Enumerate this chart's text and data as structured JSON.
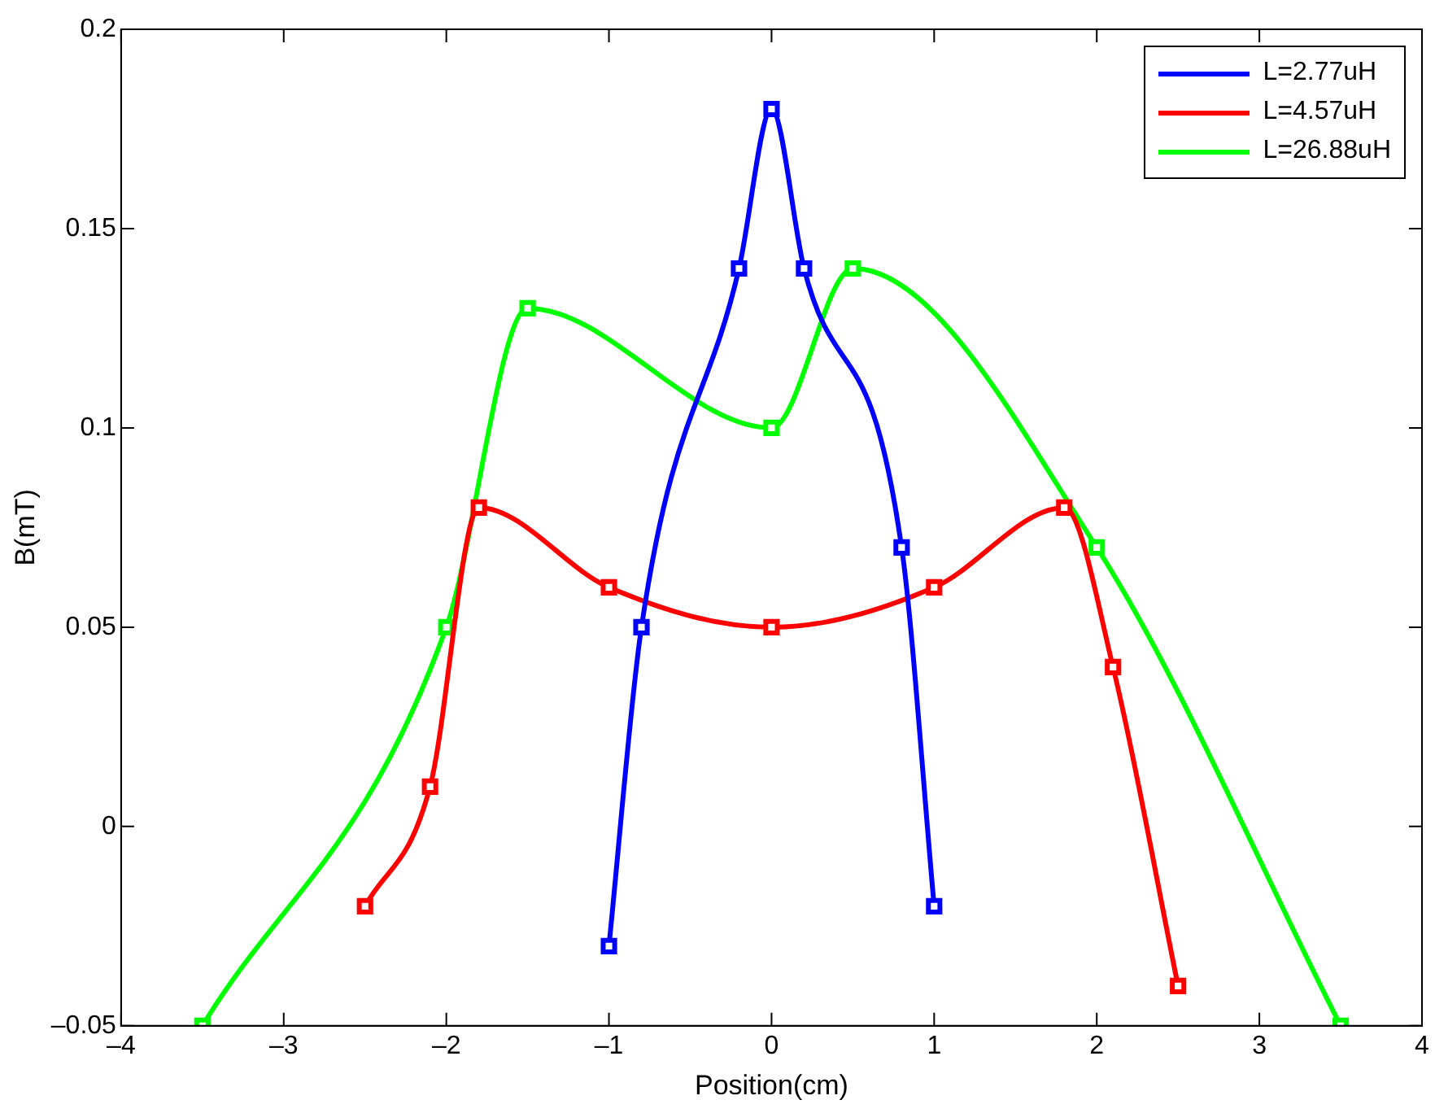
{
  "chart_data": {
    "type": "line",
    "xlabel": "Position(cm)",
    "ylabel": "B(mT)",
    "xlim": [
      -4,
      4
    ],
    "xticks": [
      {
        "value": -4,
        "label": "–4"
      },
      {
        "value": -3,
        "label": "–3"
      },
      {
        "value": -2,
        "label": "–2"
      },
      {
        "value": -1,
        "label": "–1"
      },
      0,
      1,
      2,
      3,
      4
    ],
    "ylim": [
      -0.05,
      0.2
    ],
    "yticks": [
      {
        "value": -0.05,
        "label": "–0.05"
      },
      0,
      0.05,
      0.1,
      0.15,
      0.2
    ],
    "grid": false,
    "legend": "top right",
    "marker": "square",
    "line_style": "solid",
    "series": [
      {
        "name": "L=2.77uH",
        "color": "#0000ff",
        "x": [
          -1,
          -0.8,
          -0.2,
          0,
          0.2,
          0.8,
          1
        ],
        "values": [
          -0.03,
          0.05,
          0.14,
          0.18,
          0.14,
          0.07,
          -0.02
        ]
      },
      {
        "name": "L=4.57uH",
        "color": "#ff0000",
        "x": [
          -2.5,
          -2.1,
          -1.8,
          -1,
          0,
          1,
          1.8,
          2.1,
          2.5
        ],
        "values": [
          -0.02,
          0.01,
          0.08,
          0.06,
          0.05,
          0.06,
          0.08,
          0.04,
          -0.04
        ]
      },
      {
        "name": "L=26.88uH",
        "color": "#00ff00",
        "x": [
          -3.5,
          -2,
          -1.5,
          0,
          0.5,
          2,
          3.5
        ],
        "values": [
          -0.05,
          0.05,
          0.13,
          0.1,
          0.14,
          0.07,
          -0.05
        ]
      }
    ]
  }
}
